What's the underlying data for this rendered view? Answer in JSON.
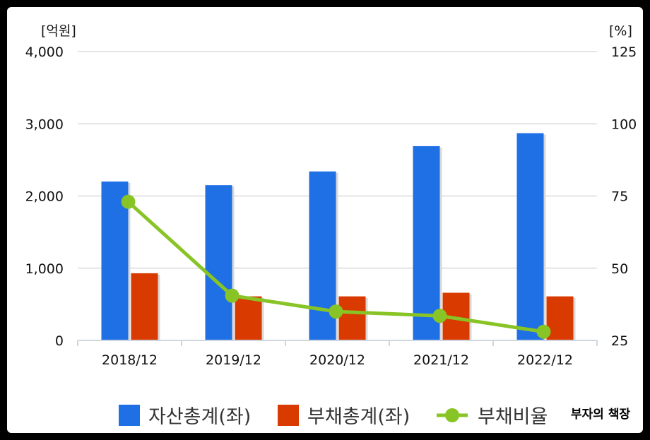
{
  "chart_data": {
    "type": "bar",
    "categories": [
      "2018/12",
      "2019/12",
      "2020/12",
      "2021/12",
      "2022/12"
    ],
    "series": [
      {
        "name": "자산총계(좌)",
        "axis": "left",
        "kind": "bar",
        "color": "#1f6fe5",
        "values": [
          2200,
          2150,
          2340,
          2690,
          2870
        ]
      },
      {
        "name": "부채총계(좌)",
        "axis": "left",
        "kind": "bar",
        "color": "#d93a00",
        "values": [
          930,
          610,
          610,
          660,
          610
        ]
      },
      {
        "name": "부채비율",
        "axis": "right",
        "kind": "line",
        "color": "#88c425",
        "values": [
          73,
          40.5,
          35,
          33.5,
          28
        ]
      }
    ],
    "left_axis": {
      "unit": "[억원]",
      "ylim": [
        0,
        4000
      ],
      "ticks": [
        0,
        1000,
        2000,
        3000,
        4000
      ],
      "tick_labels": [
        "0",
        "1,000",
        "2,000",
        "3,000",
        "4,000"
      ]
    },
    "right_axis": {
      "unit": "[%]",
      "ylim": [
        25,
        125
      ],
      "ticks": [
        25,
        50,
        75,
        100,
        125
      ],
      "tick_labels": [
        "25",
        "50",
        "75",
        "100",
        "125"
      ]
    },
    "grid": true,
    "legend_position": "bottom"
  },
  "watermark": "부자의 책장"
}
